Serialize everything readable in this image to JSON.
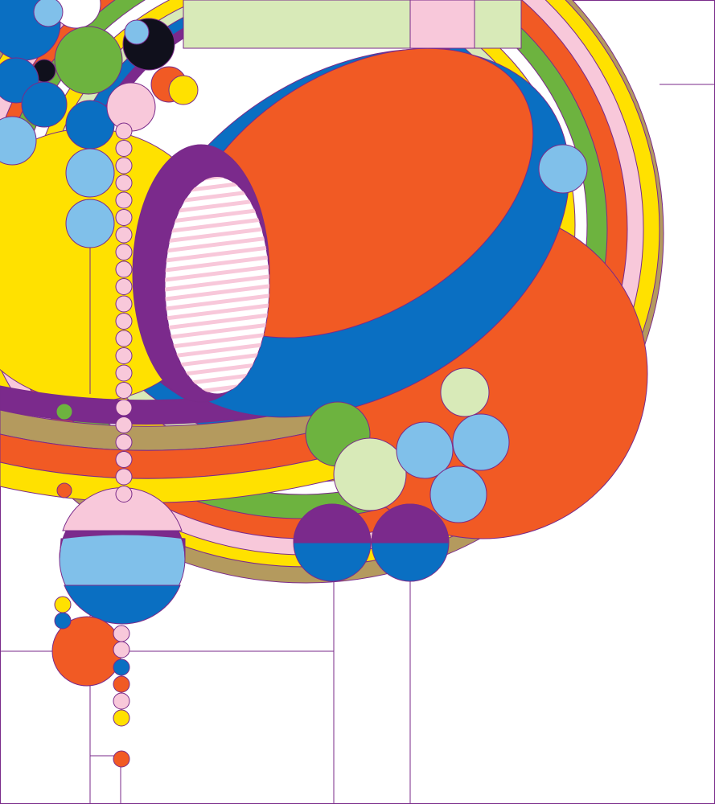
{
  "palette": {
    "blue": "#0a6fc2",
    "orange": "#f15a24",
    "yellow": "#ffe100",
    "green": "#6db33f",
    "pink": "#f8c8da",
    "light_blue": "#80c0ea",
    "purple": "#7b2a8c",
    "tan": "#b49a5e",
    "light_green": "#d8eab8",
    "black": "#10101c",
    "white": "#ffffff",
    "line": "#7a2a8a"
  }
}
